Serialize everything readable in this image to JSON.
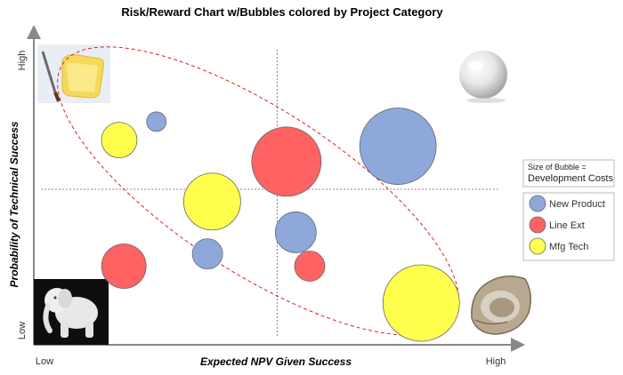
{
  "chart_data": {
    "type": "bubble",
    "title": "Risk/Reward Chart w/Bubbles colored by Project Category",
    "xlabel": "Expected NPV Given Success",
    "ylabel": "Probability of Technical Success",
    "x_ticks": {
      "low": "Low",
      "high": "High"
    },
    "y_ticks": {
      "low": "Low",
      "high": "High"
    },
    "xlim": [
      0,
      10
    ],
    "ylim": [
      0,
      10
    ],
    "quadrant_lines": {
      "x": 5.2,
      "y": 5.0
    },
    "size_note": {
      "line1": "Size of Bubble =",
      "line2": "Development Costs"
    },
    "legend_position": "right",
    "series": [
      {
        "name": "New Product",
        "color": "#8ea8dc",
        "points": [
          {
            "x": 2.6,
            "y": 7.2,
            "size": 11
          },
          {
            "x": 7.8,
            "y": 6.4,
            "size": 43
          },
          {
            "x": 5.6,
            "y": 3.6,
            "size": 23
          },
          {
            "x": 3.7,
            "y": 2.9,
            "size": 17
          }
        ]
      },
      {
        "name": "Line Ext",
        "color": "#ff6262",
        "points": [
          {
            "x": 5.4,
            "y": 5.9,
            "size": 39
          },
          {
            "x": 1.9,
            "y": 2.5,
            "size": 25
          },
          {
            "x": 5.9,
            "y": 2.5,
            "size": 17
          }
        ]
      },
      {
        "name": "Mfg Tech",
        "color": "#ffff4d",
        "points": [
          {
            "x": 1.8,
            "y": 6.6,
            "size": 20
          },
          {
            "x": 3.8,
            "y": 4.6,
            "size": 32
          },
          {
            "x": 8.3,
            "y": 1.3,
            "size": 43
          }
        ]
      }
    ],
    "icons": {
      "top_left": "bread-and-knife-icon",
      "top_right": "pearl-icon",
      "bottom_left": "white-elephant-icon",
      "bottom_right": "oyster-icon"
    },
    "ellipse": {
      "style": "dashed",
      "color": "#e02020"
    }
  }
}
